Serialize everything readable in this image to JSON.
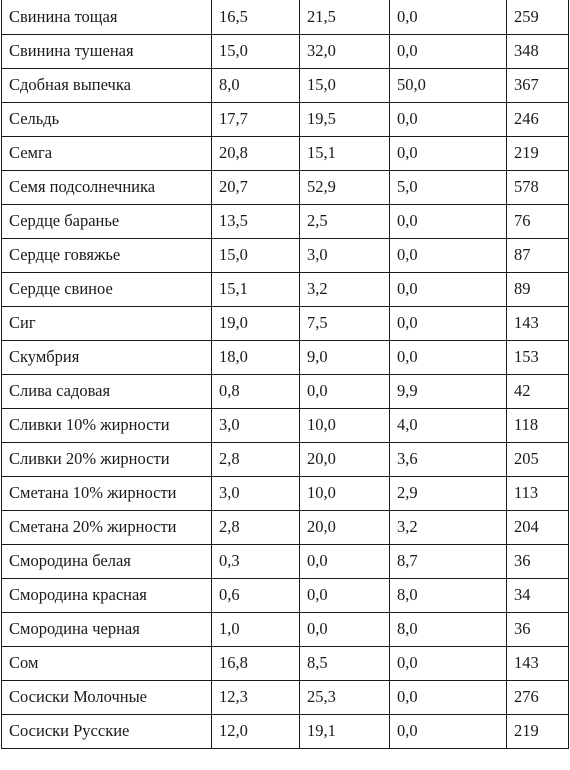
{
  "rows": [
    [
      "Свинина тощая",
      "16,5",
      "21,5",
      "0,0",
      "259"
    ],
    [
      "Свинина тушеная",
      "15,0",
      "32,0",
      "0,0",
      "348"
    ],
    [
      "Сдобная выпечка",
      "8,0",
      "15,0",
      "50,0",
      "367"
    ],
    [
      "Сельдь",
      "17,7",
      "19,5",
      "0,0",
      "246"
    ],
    [
      "Семга",
      "20,8",
      "15,1",
      "0,0",
      "219"
    ],
    [
      "Семя подсолнечника",
      "20,7",
      "52,9",
      "5,0",
      "578"
    ],
    [
      "Сердце баранье",
      "13,5",
      "2,5",
      "0,0",
      "76"
    ],
    [
      "Сердце говяжье",
      "15,0",
      "3,0",
      "0,0",
      "87"
    ],
    [
      "Сердце свиное",
      "15,1",
      "3,2",
      "0,0",
      "89"
    ],
    [
      "Сиг",
      "19,0",
      "7,5",
      "0,0",
      "143"
    ],
    [
      "Скумбрия",
      "18,0",
      "9,0",
      "0,0",
      "153"
    ],
    [
      "Слива садовая",
      "0,8",
      "0,0",
      "9,9",
      "42"
    ],
    [
      "Сливки 10% жирности",
      "3,0",
      "10,0",
      "4,0",
      "118"
    ],
    [
      "Сливки 20% жирности",
      "2,8",
      "20,0",
      "3,6",
      "205"
    ],
    [
      "Сметана 10% жирности",
      "3,0",
      "10,0",
      "2,9",
      "113"
    ],
    [
      "Сметана 20% жирности",
      "2,8",
      "20,0",
      "3,2",
      "204"
    ],
    [
      "Смородина белая",
      "0,3",
      "0,0",
      "8,7",
      "36"
    ],
    [
      "Смородина красная",
      "0,6",
      "0,0",
      "8,0",
      "34"
    ],
    [
      "Смородина черная",
      "1,0",
      "0,0",
      "8,0",
      "36"
    ],
    [
      "Сом",
      "16,8",
      "8,5",
      "0,0",
      "143"
    ],
    [
      "Сосиски Молочные",
      "12,3",
      "25,3",
      "0,0",
      "276"
    ],
    [
      "Сосиски Русские",
      "12,0",
      "19,1",
      "0,0",
      "219"
    ]
  ]
}
